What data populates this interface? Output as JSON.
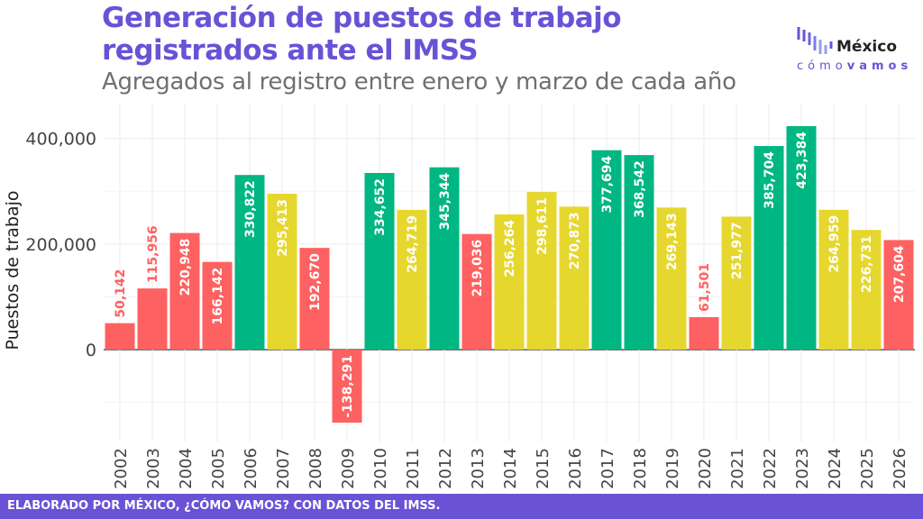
{
  "title_line1": "Generación de puestos de trabajo",
  "title_line2": "registrados ante el IMSS",
  "subtitle": "Agregados al registro entre enero y marzo de cada año",
  "logo": {
    "word": "México",
    "sub_light": "cómo",
    "sub_bold": "vamos"
  },
  "footer": "ELABORADO POR MÉXICO, ¿CÓMO VAMOS? CON DATOS DEL IMSS.",
  "colors": {
    "title": "#6a52d6",
    "red": "#fe6161",
    "green": "#00b683",
    "yellow": "#e6d72f"
  },
  "chart_data": {
    "type": "bar",
    "ylabel": "Puestos de trabajo",
    "ylim": [
      -174000,
      466000
    ],
    "yticks": [
      0,
      200000,
      400000
    ],
    "ytick_labels": [
      "0",
      "200,000",
      "400,000"
    ],
    "grid": true,
    "categories": [
      "2002",
      "2003",
      "2004",
      "2005",
      "2006",
      "2007",
      "2008",
      "2009",
      "2010",
      "2011",
      "2012",
      "2013",
      "2014",
      "2015",
      "2016",
      "2017",
      "2018",
      "2019",
      "2020",
      "2021",
      "2022",
      "2023",
      "2024",
      "2025",
      "2026"
    ],
    "values": [
      50142,
      115956,
      220948,
      166142,
      330822,
      295413,
      192670,
      -138291,
      334652,
      264719,
      345344,
      219036,
      256264,
      298611,
      270873,
      377694,
      368542,
      269143,
      61501,
      251977,
      385704,
      423384,
      264959,
      226731,
      207604
    ],
    "labels": [
      "50,142",
      "115,956",
      "220,948",
      "166,142",
      "330,822",
      "295,413",
      "192,670",
      "-138,291",
      "334,652",
      "264,719",
      "345,344",
      "219,036",
      "256,264",
      "298,611",
      "270,873",
      "377,694",
      "368,542",
      "269,143",
      "61,501",
      "251,977",
      "385,704",
      "423,384",
      "264,959",
      "226,731",
      "207,604"
    ],
    "bar_colors": [
      "red",
      "red",
      "red",
      "red",
      "green",
      "yellow",
      "red",
      "red",
      "green",
      "yellow",
      "green",
      "red",
      "yellow",
      "yellow",
      "yellow",
      "green",
      "green",
      "yellow",
      "red",
      "yellow",
      "green",
      "green",
      "yellow",
      "yellow",
      "red"
    ]
  }
}
